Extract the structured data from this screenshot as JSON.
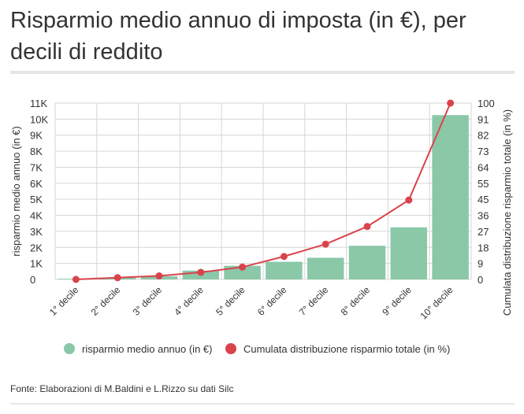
{
  "title": "Risparmio medio annuo di imposta (in €), per decili di reddito",
  "source": "Fonte: Elaborazioni di M.Baldini e L.Rizzo su dati Silc",
  "chart_data": {
    "type": "bar",
    "categories": [
      "1° decile",
      "2° decile",
      "3° decile",
      "4° decile",
      "5° decile",
      "6° decile",
      "7° decile",
      "8° decile",
      "9° decile",
      "10° decile"
    ],
    "series": [
      {
        "name": "risparmio medio annuo (in €)",
        "type": "bar",
        "axis": "left",
        "color": "#8ac8a8",
        "values": [
          40,
          110,
          200,
          550,
          850,
          1100,
          1350,
          2100,
          3250,
          10250
        ]
      },
      {
        "name": "Cumulata distribuzione risparmio totale (in %)",
        "type": "line",
        "axis": "right",
        "color": "#d9434b",
        "values": [
          0,
          1,
          2,
          4,
          7,
          13,
          20,
          30,
          45,
          100
        ]
      }
    ],
    "ylabel": "risparmio medio annuo (in €)",
    "y2label": "Cumulata distribuzione risparmio totale (in %)",
    "ylim": [
      0,
      11000
    ],
    "y2lim": [
      0,
      100
    ],
    "yticks": [
      "0",
      "1K",
      "2K",
      "3K",
      "4K",
      "5K",
      "6K",
      "7K",
      "8K",
      "9K",
      "10K",
      "11K"
    ],
    "y2ticks": [
      "0",
      "9",
      "18",
      "27",
      "36",
      "45",
      "55",
      "64",
      "73",
      "82",
      "91",
      "100"
    ],
    "grid": true,
    "legend": "bottom"
  }
}
